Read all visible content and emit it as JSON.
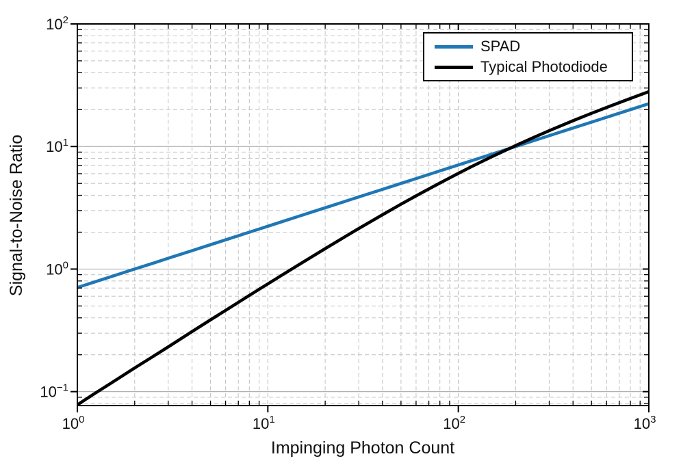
{
  "chart_data": {
    "type": "line",
    "title": "",
    "xlabel": "Impinging Photon Count",
    "ylabel": "Signal-to-Noise Ratio",
    "x_scale": "log",
    "y_scale": "log",
    "xlim": [
      1,
      1000
    ],
    "ylim": [
      0.077,
      100
    ],
    "x_ticks": [
      {
        "base": "10",
        "exp": "0"
      },
      {
        "base": "10",
        "exp": "1"
      },
      {
        "base": "10",
        "exp": "2"
      },
      {
        "base": "10",
        "exp": "3"
      }
    ],
    "y_ticks": [
      {
        "base": "10",
        "exp": "2"
      },
      {
        "base": "10",
        "exp": "1"
      },
      {
        "base": "10",
        "exp": "0"
      },
      {
        "base": "10",
        "exp": "−1"
      }
    ],
    "grid": {
      "minor": "dashed",
      "major_horizontal": "solid",
      "major_vertical": "dashed"
    },
    "legend": {
      "position": "top-right",
      "border": true
    },
    "x": [
      1,
      1.2,
      1.5,
      2,
      2.5,
      3,
      4,
      5,
      6,
      8,
      10,
      12,
      15,
      20,
      25,
      30,
      40,
      50,
      60,
      80,
      100,
      120,
      150,
      200,
      250,
      300,
      400,
      500,
      600,
      800,
      1000
    ],
    "series": [
      {
        "name": "SPAD",
        "color": "#1f77b4",
        "width": 4.5,
        "values": [
          0.707,
          0.775,
          0.866,
          1.0,
          1.118,
          1.225,
          1.414,
          1.581,
          1.732,
          2.0,
          2.236,
          2.449,
          2.739,
          3.162,
          3.536,
          3.873,
          4.472,
          5.0,
          5.477,
          6.325,
          7.071,
          7.746,
          8.66,
          10.0,
          11.18,
          12.247,
          14.142,
          15.811,
          17.321,
          20.0,
          22.361
        ]
      },
      {
        "name": "Typical Photodiode",
        "color": "#000000",
        "width": 4.5,
        "values": [
          0.078,
          0.094,
          0.117,
          0.156,
          0.194,
          0.232,
          0.309,
          0.385,
          0.46,
          0.61,
          0.757,
          0.903,
          1.118,
          1.468,
          1.809,
          2.14,
          2.775,
          3.38,
          3.957,
          5.038,
          6.037,
          6.968,
          8.258,
          10.187,
          11.904,
          13.462,
          16.226,
          18.649,
          20.827,
          24.663,
          28.012
        ]
      }
    ]
  },
  "colors": {
    "background": "#ffffff",
    "frame": "#000000",
    "grid_minor": "#c7c7c7",
    "grid_major_h": "#b0b0b0",
    "grid_major_v": "#bdbdbd"
  }
}
